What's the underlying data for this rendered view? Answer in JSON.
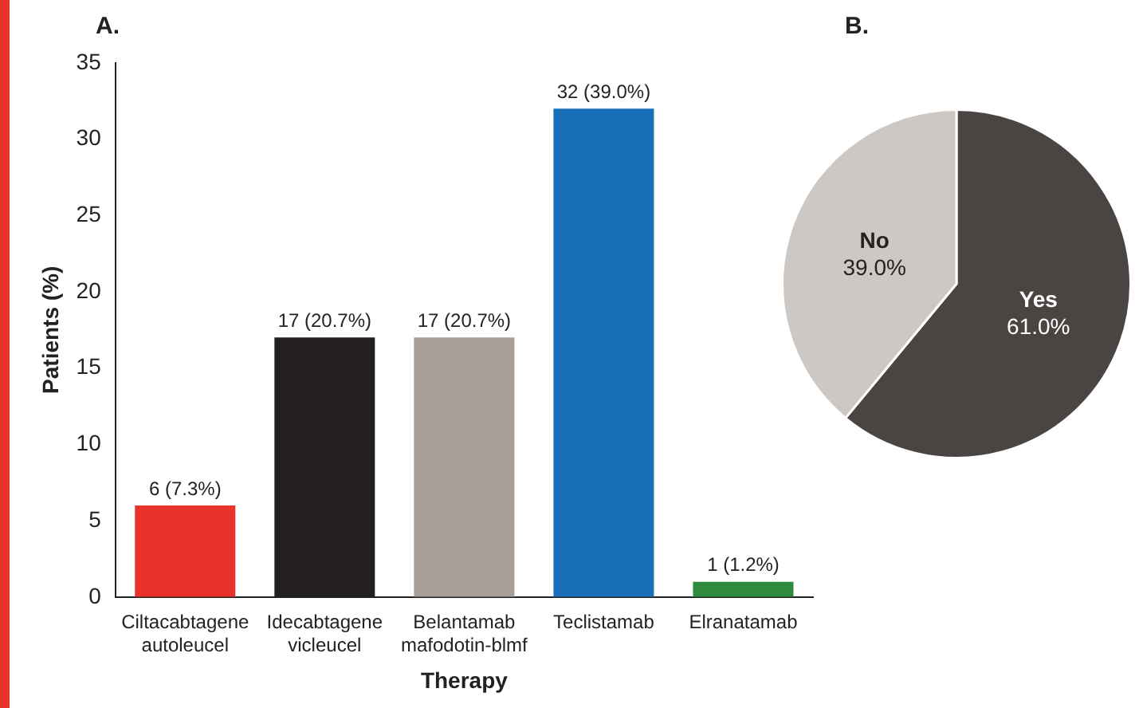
{
  "chart_data": [
    {
      "type": "bar",
      "title": "A.",
      "xlabel": "Therapy",
      "ylabel": "Patients (%)",
      "categories": [
        "Ciltacabtagene autoleucel",
        "Idecabtagene vicleucel",
        "Belantamab mafodotin-blmf",
        "Teclistamab",
        "Elranatamab"
      ],
      "values": [
        6,
        17,
        17,
        32,
        1
      ],
      "colors": [
        "#e8322a",
        "#231f20",
        "#a89f99",
        "#1a6fb9",
        "#2e8b3e"
      ],
      "value_labels": [
        "6 (7.3%)",
        "17 (20.7%)",
        "17 (20.7%)",
        "32 (39.0%)",
        "1 (1.2%)"
      ],
      "ylim": [
        0,
        35
      ],
      "yticks": [
        0,
        5,
        10,
        15,
        20,
        25,
        30,
        35
      ],
      "grid": false,
      "legend": false
    },
    {
      "type": "pie",
      "title": "B.",
      "categories": [
        "Yes",
        "No"
      ],
      "values": [
        61,
        39
      ],
      "colors": [
        "#4a4542",
        "#cdc8c3"
      ],
      "value_labels": [
        "61.0%",
        "39.0%"
      ],
      "legend": false
    }
  ]
}
